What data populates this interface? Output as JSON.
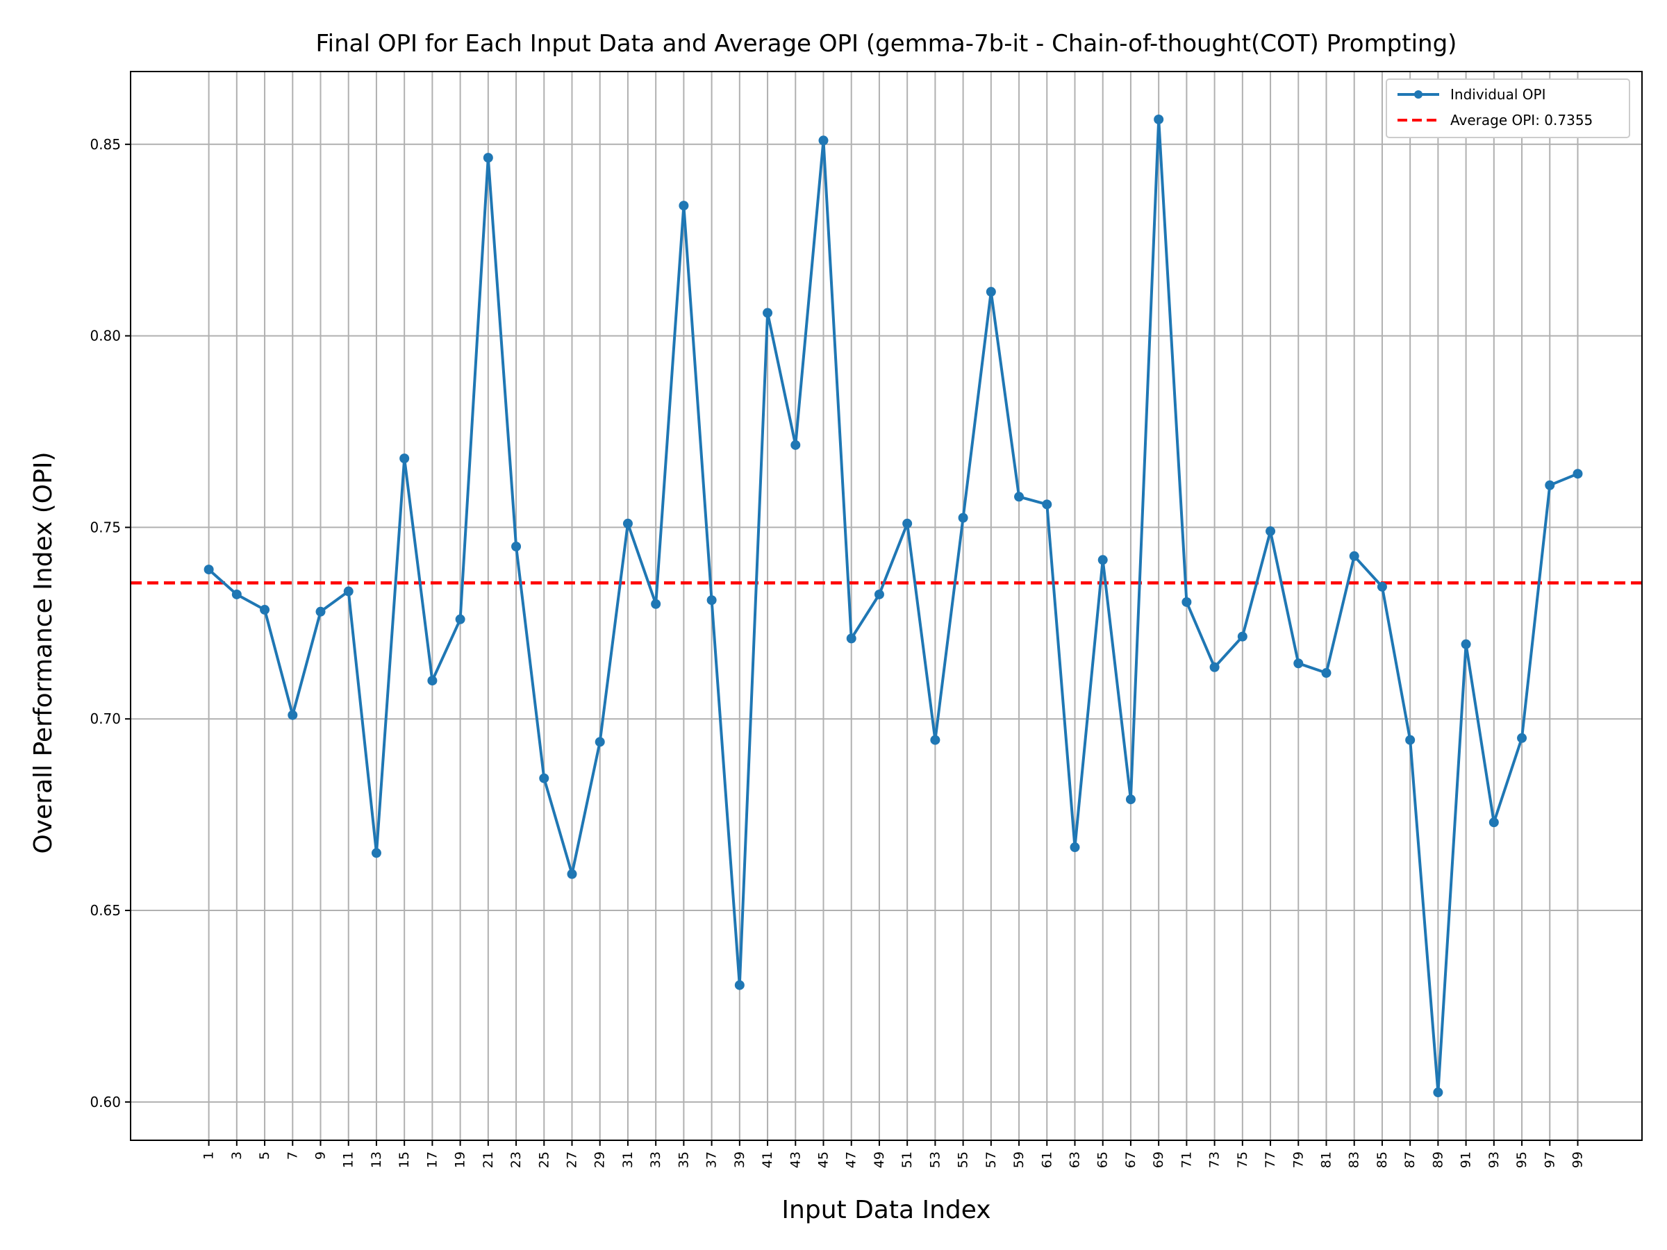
{
  "chart_data": {
    "type": "line",
    "title": "Final OPI for Each Input Data and Average OPI (gemma-7b-it - Chain-of-thought(COT) Prompting)",
    "xlabel": "Input Data Index",
    "ylabel": "Overall Performance Index (OPI)",
    "x": [
      1,
      3,
      5,
      7,
      9,
      11,
      13,
      15,
      17,
      19,
      21,
      23,
      25,
      27,
      29,
      31,
      33,
      35,
      37,
      39,
      41,
      43,
      45,
      47,
      49,
      51,
      53,
      55,
      57,
      59,
      61,
      63,
      65,
      67,
      69,
      71,
      73,
      75,
      77,
      79,
      81,
      83,
      85,
      87,
      89,
      91,
      93,
      95,
      97,
      99
    ],
    "xticks": [
      "1",
      "3",
      "5",
      "7",
      "9",
      "11",
      "13",
      "15",
      "17",
      "19",
      "21",
      "23",
      "25",
      "27",
      "29",
      "31",
      "33",
      "35",
      "37",
      "39",
      "41",
      "43",
      "45",
      "47",
      "49",
      "51",
      "53",
      "55",
      "57",
      "59",
      "61",
      "63",
      "65",
      "67",
      "69",
      "71",
      "73",
      "75",
      "77",
      "79",
      "81",
      "83",
      "85",
      "87",
      "89",
      "91",
      "93",
      "95",
      "97",
      "99"
    ],
    "series": [
      {
        "name": "Individual OPI",
        "color": "#1f77b4",
        "values": [
          0.739,
          0.7325,
          0.7285,
          0.701,
          0.728,
          0.7333,
          0.665,
          0.768,
          0.71,
          0.726,
          0.8465,
          0.745,
          0.6845,
          0.6595,
          0.694,
          0.751,
          0.73,
          0.834,
          0.731,
          0.6305,
          0.806,
          0.7715,
          0.851,
          0.721,
          0.7325,
          0.751,
          0.6945,
          0.7525,
          0.8115,
          0.758,
          0.756,
          0.6665,
          0.7415,
          0.679,
          0.8565,
          0.7305,
          0.7135,
          0.7215,
          0.749,
          0.7145,
          0.712,
          0.7425,
          0.7345,
          0.6945,
          0.6025,
          0.7195,
          0.673,
          0.695,
          0.761,
          0.764
        ]
      }
    ],
    "average": {
      "name": "Average OPI: 0.7355",
      "value": 0.7355,
      "color": "#ff0000",
      "style": "dashed"
    },
    "yticks": [
      "0.60",
      "0.65",
      "0.70",
      "0.75",
      "0.80",
      "0.85"
    ],
    "ytick_values": [
      0.6,
      0.65,
      0.7,
      0.75,
      0.8,
      0.85
    ],
    "ylim": [
      0.59,
      0.869
    ],
    "xlim": [
      -4.6,
      103.6
    ],
    "grid": true,
    "legend_position": "top-right"
  }
}
